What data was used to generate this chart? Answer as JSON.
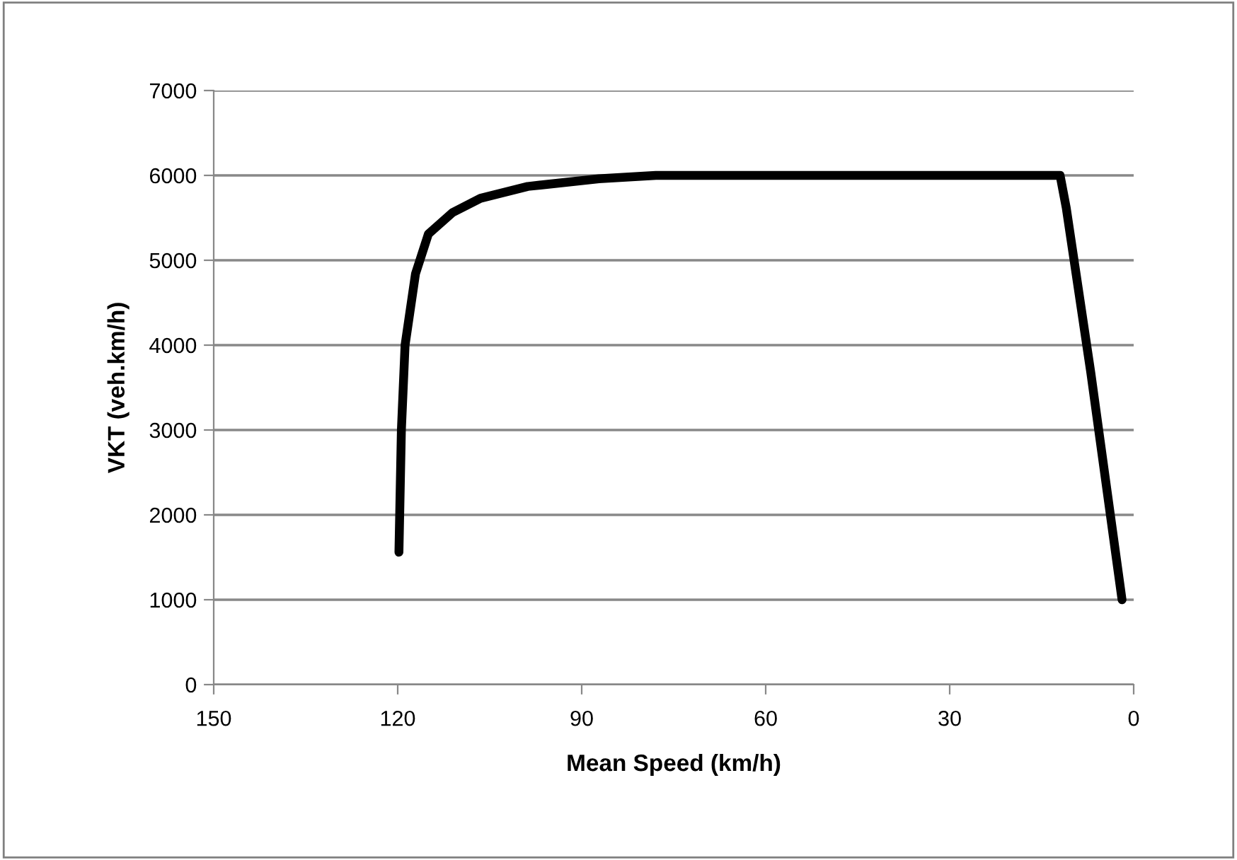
{
  "chart_data": {
    "type": "line",
    "xlabel": "Mean Speed (km/h)",
    "ylabel": "VKT (veh.km/h)",
    "x": [
      119.8,
      119.4,
      118.8,
      117.1,
      115,
      111.1,
      106.5,
      98.8,
      87.2,
      77.9,
      12,
      11,
      7,
      1.9
    ],
    "series": [
      {
        "color": "#000000",
        "values": [
          1560,
          3000,
          4000,
          4840,
          5310,
          5560,
          5730,
          5870,
          5960,
          6000,
          6000,
          5620,
          3680,
          1000
        ]
      }
    ],
    "xlim": [
      150,
      0
    ],
    "xticks": [
      150,
      120,
      90,
      60,
      30,
      0
    ],
    "ylim": [
      0,
      7000
    ],
    "yticks": [
      0,
      1000,
      2000,
      3000,
      4000,
      5000,
      6000,
      7000
    ],
    "grid": "y",
    "legend": false,
    "marker": "none",
    "line_style": "solid"
  }
}
